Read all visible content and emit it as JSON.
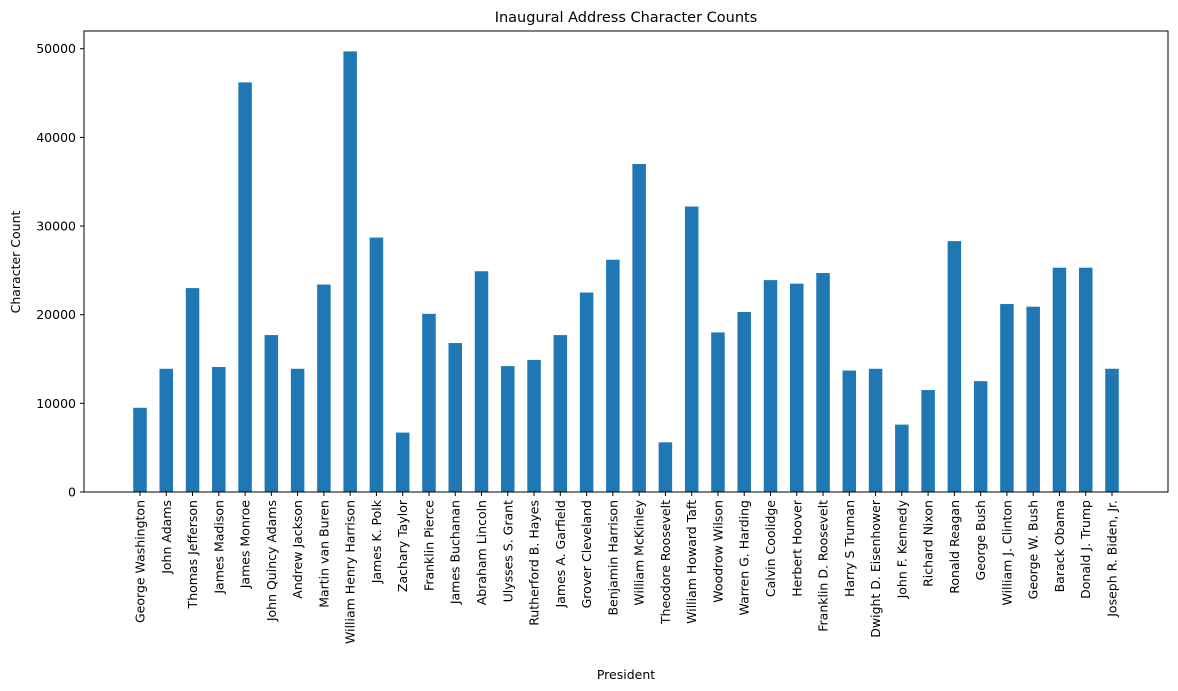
{
  "chart_data": {
    "type": "bar",
    "title": "Inaugural Address Character Counts",
    "xlabel": "President",
    "ylabel": "Character Count",
    "ylim": [
      0,
      52000
    ],
    "yticks": [
      0,
      10000,
      20000,
      30000,
      40000,
      50000
    ],
    "grid": false,
    "bar_color": "#1f77b4",
    "categories": [
      "George Washington",
      "John Adams",
      "Thomas Jefferson",
      "James Madison",
      "James Monroe",
      "John Quincy Adams",
      "Andrew Jackson",
      "Martin van Buren",
      "William Henry Harrison",
      "James K. Polk",
      "Zachary Taylor",
      "Franklin Pierce",
      "James Buchanan",
      "Abraham Lincoln",
      "Ulysses S. Grant",
      "Rutherford B. Hayes",
      "James A. Garfield",
      "Grover Cleveland",
      "Benjamin Harrison",
      "William McKinley",
      "Theodore Roosevelt",
      "William Howard Taft",
      "Woodrow Wilson",
      "Warren G. Harding",
      "Calvin Coolidge",
      "Herbert Hoover",
      "Franklin D. Roosevelt",
      "Harry S Truman",
      "Dwight D. Eisenhower",
      "John F. Kennedy",
      "Richard Nixon",
      "Ronald Reagan",
      "George Bush",
      "William J. Clinton",
      "George W. Bush",
      "Barack Obama",
      "Donald J. Trump",
      "Joseph R. Biden, Jr."
    ],
    "values": [
      9500,
      13900,
      23000,
      14100,
      46200,
      17700,
      13900,
      23400,
      49700,
      28700,
      6700,
      20100,
      16800,
      24900,
      14200,
      14900,
      17700,
      22500,
      26200,
      37000,
      5600,
      32200,
      18000,
      20300,
      23900,
      23500,
      24700,
      13700,
      13900,
      7600,
      11500,
      28300,
      12500,
      21200,
      20900,
      25300,
      25300,
      13900
    ]
  }
}
